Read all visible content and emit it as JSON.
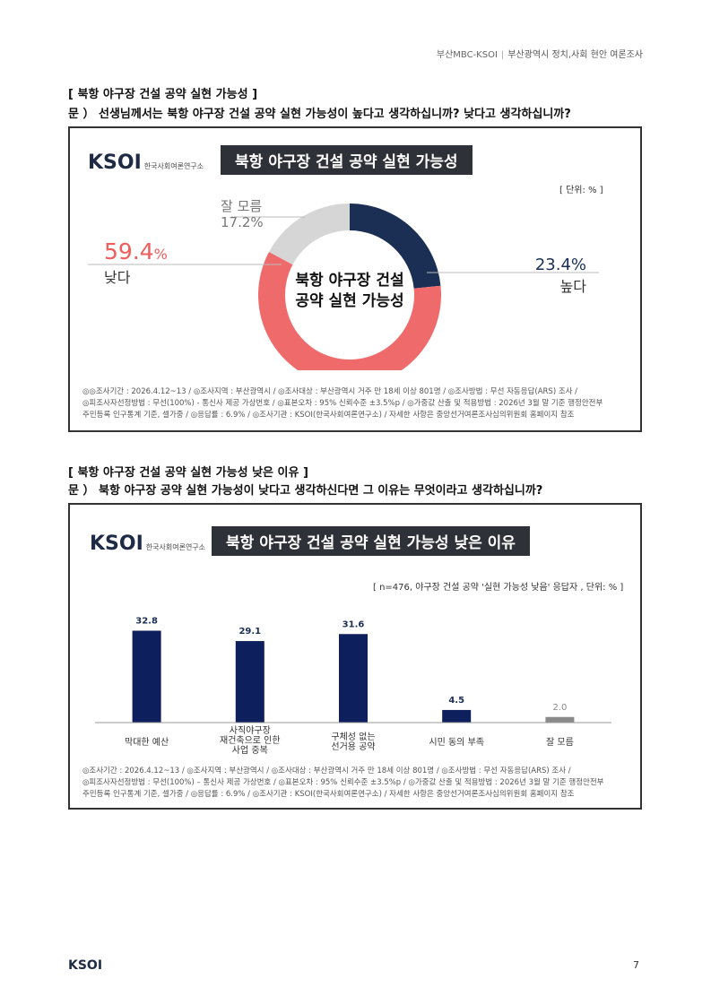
{
  "header": {
    "source": "부산MBC-KSOI",
    "title": "부산광역시 정치,사회 현안 여론조사"
  },
  "section1": {
    "title": "[ 북항 야구장 건설 공약 실현 가능성 ]",
    "question": "문 ）  선생님께서는 북항 야구장 건설 공약 실현 가능성이 높다고 생각하십니까? 낮다고 생각하십니까?"
  },
  "section2": {
    "title": "[ 북항 야구장 건설 공약 실현 가능성 낮은 이유 ]",
    "question": "문 ）  북항 야구장 공약 실현 가능성이 낮다고 생각하신다면 그 이유는 무엇이라고 생각하십니까?"
  },
  "logo": {
    "brand": "KSOI",
    "org": "한국사회여론연구소"
  },
  "chart1": {
    "box_title": "북항 야구장 건설 공약 실현 가능성",
    "unit": "[ 단위: % ]",
    "center_label_line1": "북항 야구장 건설",
    "center_label_line2": "공약 실현 가능성",
    "label_high": "높다",
    "value_high": "23.4%",
    "label_low": "낮다",
    "value_low_num": "59.4",
    "value_low_pct": "%",
    "label_unknown": "잘 모름",
    "value_unknown": "17.2%",
    "footnote_line1": "◎◎조사기간 : 2026.4.12~13 / ◎조사지역 : 부산광역시 / ◎조사대상 : 부산광역시 거주 만 18세 이상 801명 / ◎조사방법 : 무선 자동응답(ARS) 조사 /",
    "footnote_line2": "◎피조사자선정방법 : 무선(100%) - 통신사 제공 가상번호 / ◎표본오차 : 95% 신뢰수준 ±3.5%p / ◎가중값 산출 및 적용방법 : 2026년 3월 말 기준 행정안전부",
    "footnote_line3": "주민등록 인구통계 기준, 셀가중 / ◎응답률 : 6.9% / ◎조사기관 : KSOI(한국사회여론연구소) / 자세한 사항은 중앙선거여론조사심의위원회 홈페이지 참조"
  },
  "chart2": {
    "box_title": "북항 야구장 건설 공약 실현 가능성 낮은 이유",
    "unit": "[ n=476, 야구장 건설 공약 '실현 가능성 낮음' 응답자 , 단위: % ]",
    "footnote_line1": "◎조사기간 : 2026.4.12~13 / ◎조사지역 : 부산광역시 / ◎조사대상 : 부산광역시 거주 만 18세 이상 801명 / ◎조사방법 : 무선 자동응답(ARS) 조사 /",
    "footnote_line2": "◎피조사자선정방법 : 무선(100%) – 통신사 제공 가상번호 / ◎표본오차 : 95% 신뢰수준 ±3.5%p / ◎가중값 산출 및 적용방법 : 2026년 3월 말 기준 행정안전부",
    "footnote_line3": "주민등록 인구통계 기준, 셀가중 / ◎응답률 : 6.9% / ◎조사기관 : KSOI(한국사회여론연구소) / 자세한 사항은 중앙선거여론조사심의위원회 홈페이지 참조"
  },
  "chart_data": [
    {
      "type": "pie",
      "title": "북항 야구장 건설 공약 실현 가능성",
      "categories": [
        "높다",
        "낮다",
        "잘 모름"
      ],
      "values": [
        23.4,
        59.4,
        17.2
      ],
      "colors": [
        "#1b2f55",
        "#ef6b6b",
        "#d6d6d6"
      ],
      "unit": "%"
    },
    {
      "type": "bar",
      "title": "북항 야구장 건설 공약 실현 가능성 낮은 이유",
      "categories": [
        [
          "막대한 예산"
        ],
        [
          "사직야구장",
          "재건축으로 인한",
          "사업 중복"
        ],
        [
          "구체성 없는",
          "선거용 공약"
        ],
        [
          "시민 동의 부족"
        ],
        [
          "잘 모름"
        ]
      ],
      "values": [
        32.8,
        29.1,
        31.6,
        4.5,
        2.0
      ],
      "value_labels": [
        "32.8",
        "29.1",
        "31.6",
        "4.5",
        "2.0"
      ],
      "bar_color": "#0d1f5c",
      "ylim": [
        0,
        40
      ],
      "unit": "%"
    }
  ],
  "footer": {
    "brand": "KSOI",
    "page": "7"
  }
}
